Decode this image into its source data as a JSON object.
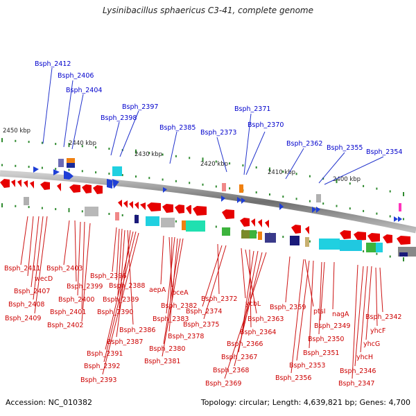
{
  "title": "Lysinibacillus sphaericus C3-41, complete genome",
  "accession": "Accession: NC_010382",
  "summary": "Topology: circular; Length: 4,639,821 bp; Genes: 4,700",
  "colors": {
    "backbone": "#777777",
    "forward_gene": "#1f3fd6",
    "reverse_gene": "#e60000",
    "label_top": "#0000cc",
    "label_bottom": "#cc0000",
    "tick": "#2f8a2f"
  },
  "kbp_labels": [
    "2450 kbp",
    "2440 kbp",
    "2430 kbp",
    "2420 kbp",
    "2410 kbp",
    "2400 kbp"
  ],
  "top_labels": [
    "Bsph_2412",
    "Bsph_2406",
    "Bsph_2404",
    "Bsph_2397",
    "Bsph_2398",
    "Bsph_2385",
    "Bsph_2371",
    "Bsph_2373",
    "Bsph_2370",
    "Bsph_2362",
    "Bsph_2355",
    "Bsph_2354"
  ],
  "bottom_labels": [
    "Bsph_2411",
    "wecD",
    "Bsph_2407",
    "Bsph_2408",
    "Bsph_2409",
    "Bsph_2403",
    "Bsph_2399",
    "Bsph_2400",
    "Bsph_2401",
    "Bsph_2402",
    "Bsph_2396",
    "Bsph_2388",
    "Bsph_2389",
    "Bsph_2390",
    "Bsph_2386",
    "Bsph_2387",
    "Bsph_2391",
    "Bsph_2392",
    "Bsph_2393",
    "aepA",
    "bceA",
    "Bsph_2382",
    "Bsph_2383",
    "Bsph_2378",
    "Bsph_2380",
    "Bsph_2381",
    "Bsph_2372",
    "Bsph_2374",
    "Bsph_2375",
    "ycbL",
    "Bsph_2363",
    "Bsph_2364",
    "Bsph_2366",
    "Bsph_2367",
    "Bsph_2368",
    "Bsph_2369",
    "Bsph_2359",
    "ptsI",
    "nagA",
    "Bsph_2349",
    "Bsph_2350",
    "Bsph_2351",
    "Bsph_2353",
    "Bsph_2356",
    "Bsph_2342",
    "yhcF",
    "yhcG",
    "yhcH",
    "Bsph_2346",
    "Bsph_2347"
  ]
}
